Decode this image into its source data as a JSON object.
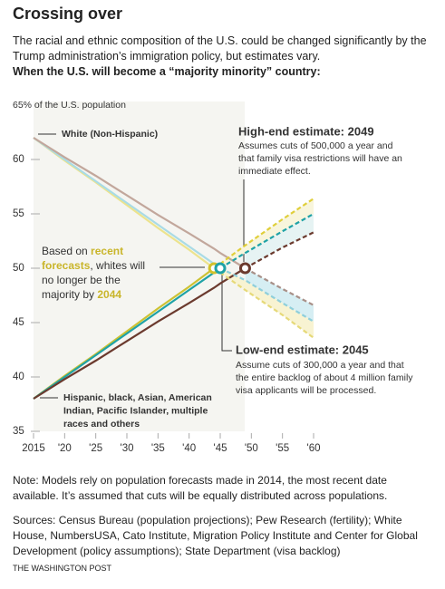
{
  "header": {
    "title": "Crossing over",
    "subtitle": "The racial and ethnic composition of the U.S. could be changed significantly by the Trump administration’s immigration policy, but estimates vary.",
    "question": "When the U.S. will become a “majority minority” country:"
  },
  "chart_data": {
    "type": "line",
    "x": [
      2015,
      2020,
      2025,
      2030,
      2035,
      2040,
      2044,
      2045,
      2049,
      2055,
      2060
    ],
    "xlim": [
      2015,
      2060
    ],
    "xticks": [
      2015,
      {
        "value": 2020,
        "label": "'20"
      },
      {
        "value": 2025,
        "label": "'25"
      },
      {
        "value": 2030,
        "label": "'30"
      },
      {
        "value": 2035,
        "label": "'35"
      },
      {
        "value": 2040,
        "label": "'40"
      },
      {
        "value": 2045,
        "label": "'45"
      },
      {
        "value": 2050,
        "label": "'50"
      },
      {
        "value": 2055,
        "label": "'55"
      },
      {
        "value": 2060,
        "label": "'60"
      }
    ],
    "ylim": [
      35,
      65
    ],
    "yticks": [
      35,
      40,
      45,
      50,
      55,
      60,
      {
        "value": 65,
        "label": "65% of the U.S. population"
      }
    ],
    "grid": false,
    "series": [
      {
        "color": "#ece38e",
        "dashed": false,
        "marker": "#d2c02a",
        "values": [
          62,
          59.9,
          57.9,
          55.8,
          53.7,
          51.7,
          50,
          null,
          null,
          null,
          null
        ]
      },
      {
        "color": "#a9dbe5",
        "dashed": false,
        "marker": "#1fa2a6",
        "values": [
          62,
          60,
          58,
          56,
          54,
          52,
          50.4,
          50,
          null,
          null,
          null
        ]
      },
      {
        "color": "#c2a79c",
        "dashed": false,
        "marker": "#6b3a2e",
        "values": [
          62,
          60.2,
          58.5,
          56.7,
          54.9,
          53.2,
          51.8,
          51.4,
          50,
          null,
          null
        ]
      },
      {
        "color": "#ccc233",
        "dashed": false,
        "values": [
          38,
          40.1,
          42.1,
          44.2,
          46.3,
          48.3,
          50,
          null,
          null,
          null,
          null
        ]
      },
      {
        "color": "#1fa2a6",
        "dashed": false,
        "values": [
          38,
          40,
          42,
          44,
          46,
          48,
          49.6,
          50,
          null,
          null,
          null
        ]
      },
      {
        "color": "#6b3a2e",
        "dashed": false,
        "values": [
          38,
          39.8,
          41.5,
          43.3,
          45.1,
          46.8,
          48.2,
          48.6,
          50,
          null,
          null
        ]
      },
      {
        "color": "#e6d978",
        "dashed": true,
        "values": [
          null,
          null,
          null,
          null,
          null,
          null,
          50,
          49.6,
          48.0,
          45.7,
          43.6
        ]
      },
      {
        "color": "#8fcfdb",
        "dashed": true,
        "values": [
          null,
          null,
          null,
          null,
          null,
          null,
          null,
          50,
          48.9,
          46.8,
          45.1
        ]
      },
      {
        "color": "#a89088",
        "dashed": true,
        "values": [
          null,
          null,
          null,
          null,
          null,
          null,
          null,
          null,
          50,
          48.1,
          46.6
        ]
      },
      {
        "color": "#e0cf3a",
        "dashed": true,
        "values": [
          null,
          null,
          null,
          null,
          null,
          null,
          50,
          50.4,
          52.1,
          54.5,
          56.4
        ]
      },
      {
        "color": "#1fa2a6",
        "dashed": true,
        "values": [
          null,
          null,
          null,
          null,
          null,
          null,
          null,
          50,
          51.4,
          53.4,
          55.0
        ]
      },
      {
        "color": "#6b3a2e",
        "dashed": true,
        "values": [
          null,
          null,
          null,
          null,
          null,
          null,
          null,
          null,
          50,
          51.9,
          53.3
        ]
      }
    ],
    "bands": [
      {
        "between": [
          8,
          7
        ],
        "color": "#d6eef3"
      },
      {
        "between": [
          7,
          6
        ],
        "color": "#f8f3d2"
      },
      {
        "between": [
          9,
          10
        ],
        "color": "#f8f5dc"
      },
      {
        "between": [
          10,
          11
        ],
        "color": "#e6f3f3"
      }
    ],
    "annotations": {
      "white": "White (Non-Hispanic)",
      "minority": [
        "Hispanic, black, Asian, American",
        "Indian, Pacific Islander, multiple",
        "races and others"
      ],
      "high_title": "High-end estimate: 2049",
      "high_body": [
        "Assumes cuts of 500,000 a year and",
        "that family visa restrictions will have an",
        "immediate effect."
      ],
      "low_title": "Low-end estimate: 2045",
      "low_body": [
        "Assume cuts of 300,000 a year and that",
        "the entire backlog of about 4 million family",
        "visa applicants will be processed."
      ],
      "recent": [
        [
          "Based on ",
          "recent"
        ],
        [
          "forecasts",
          ", whites will"
        ],
        [
          "no longer be the"
        ],
        [
          "majority by ",
          "2044"
        ]
      ]
    }
  },
  "footer": {
    "note": "Note: Models rely on population forecasts made in 2014, the most recent date available. It’s assumed that cuts will be equally distributed across populations.",
    "sources": "Sources: Census Bureau (population projections); Pew Research (fertility); White House, NumbersUSA, Cato Institute, Migration Policy Institute and Center for Global Development (policy assumptions); State Department (visa backlog)",
    "credit": "THE WASHINGTON POST"
  }
}
